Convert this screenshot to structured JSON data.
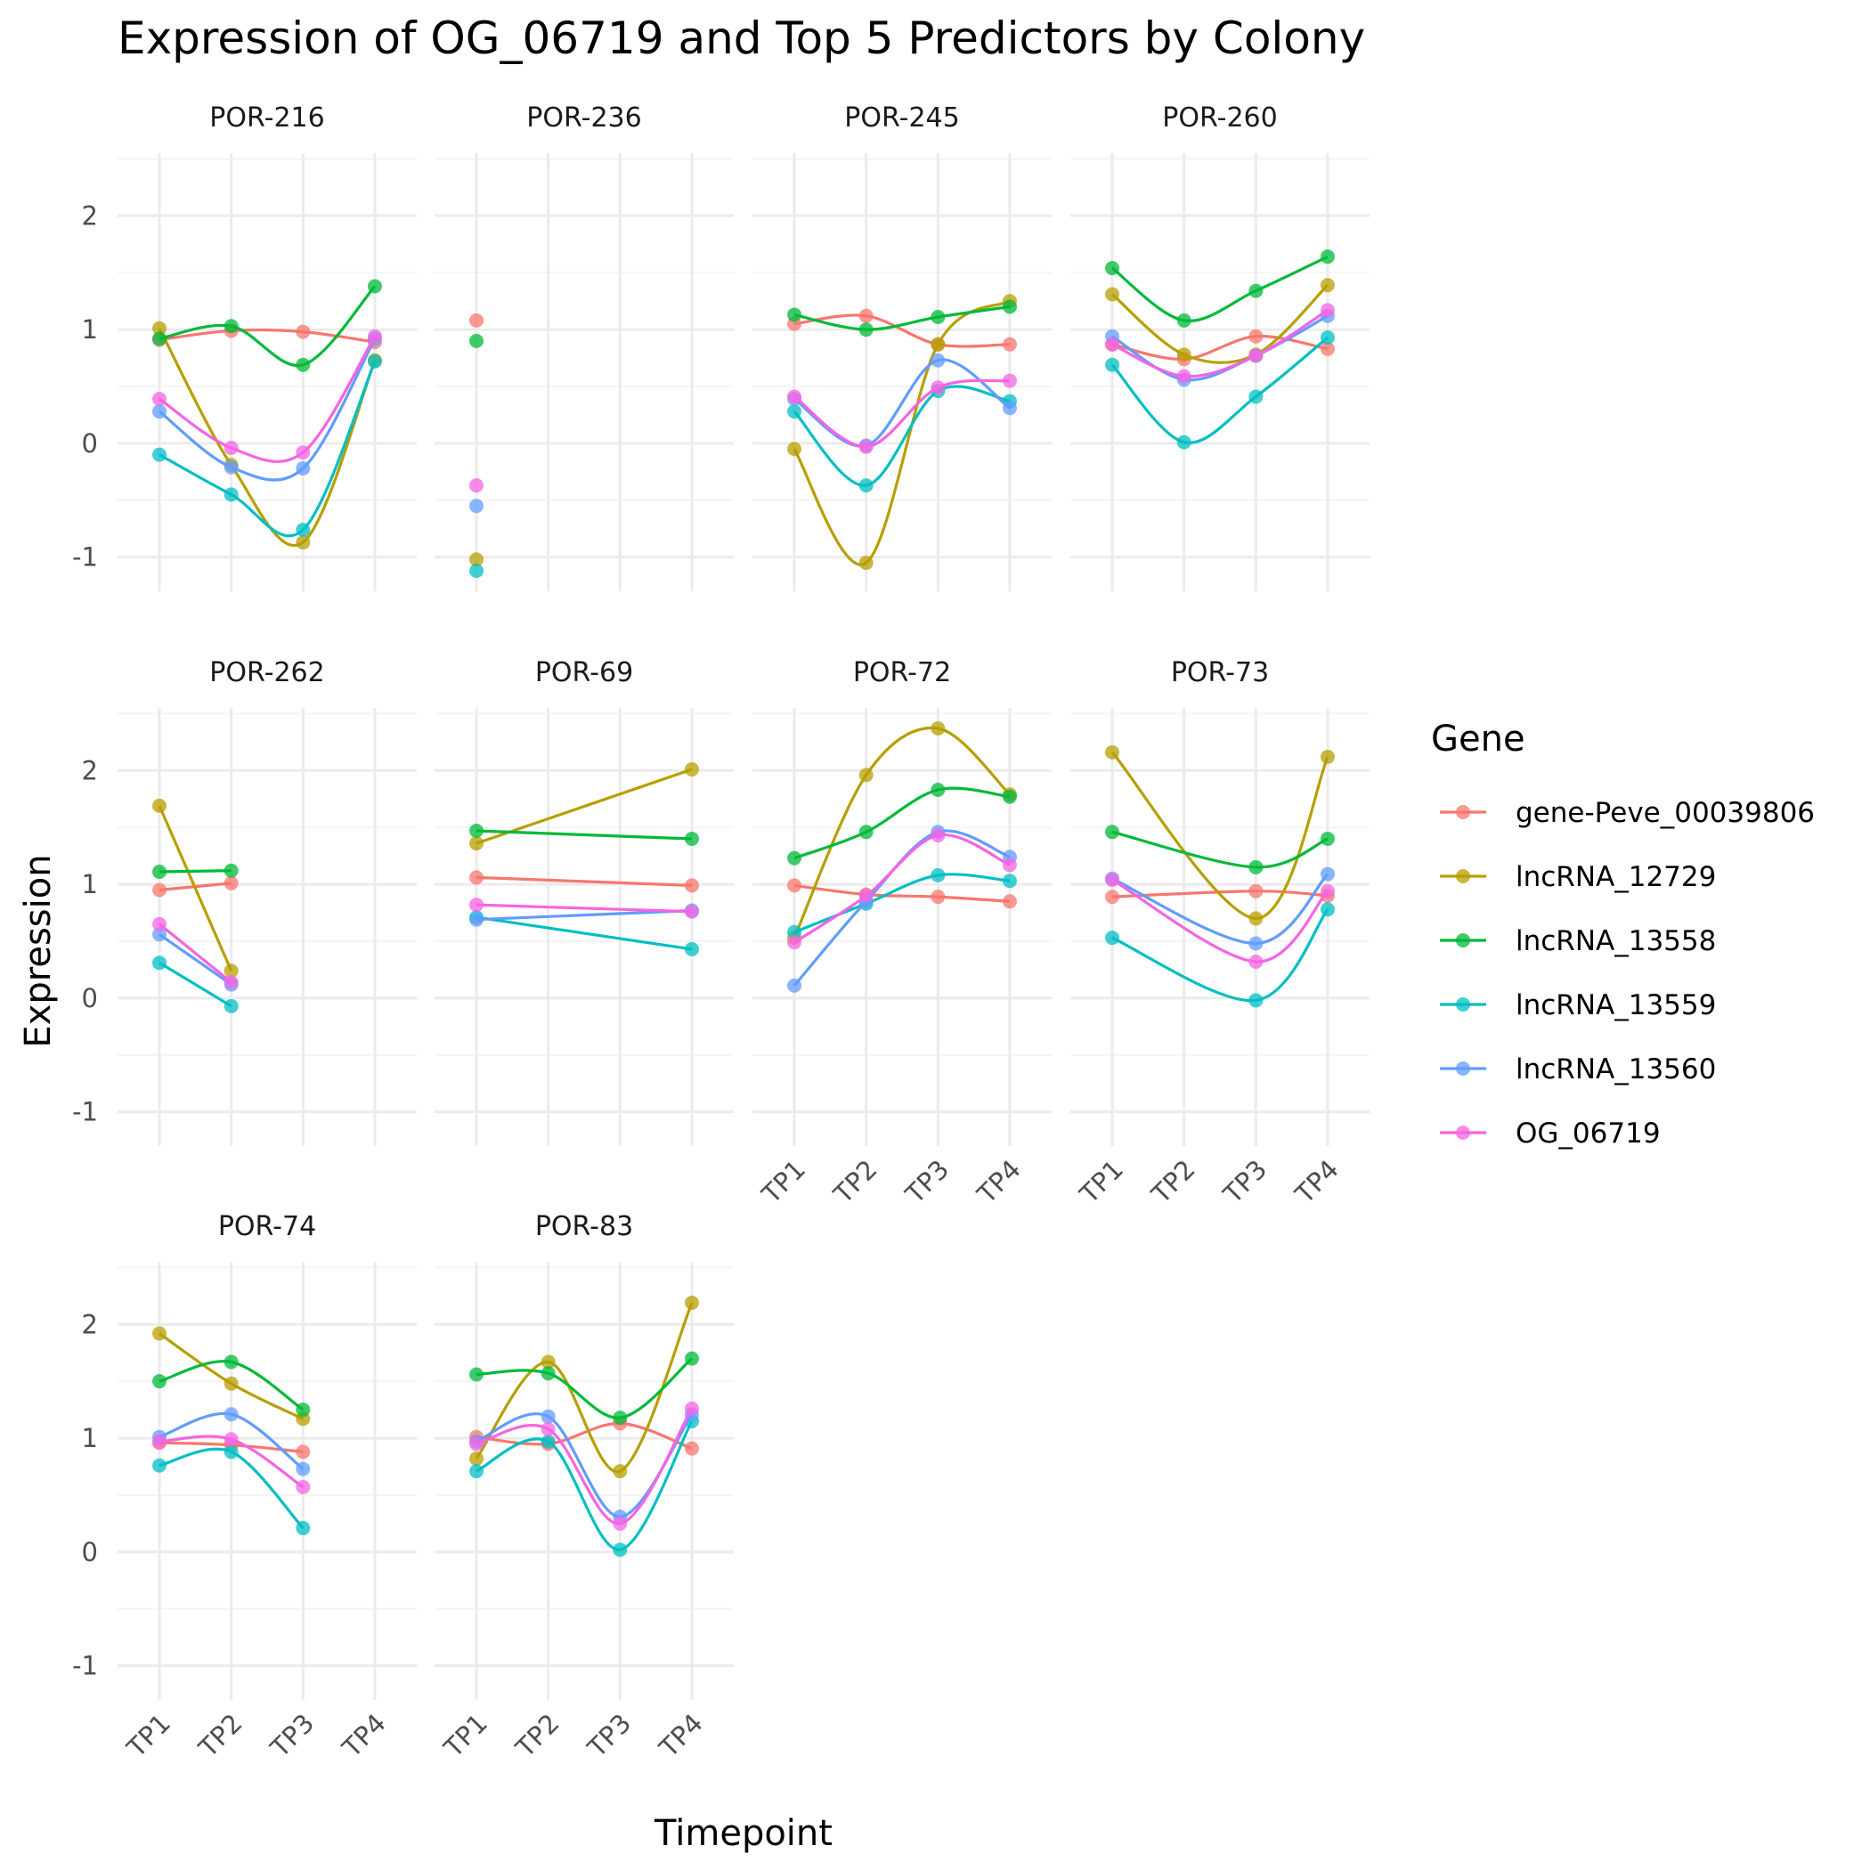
{
  "chart_data": {
    "type": "line",
    "title": "Expression of OG_06719 and Top 5 Predictors by Colony",
    "xlabel": "Timepoint",
    "ylabel": "Expression",
    "x": [
      "TP1",
      "TP2",
      "TP3",
      "TP4"
    ],
    "ylim": [
      -1.3,
      2.55
    ],
    "yticks": [
      -1,
      0,
      1,
      2
    ],
    "grid": true,
    "legend": {
      "title": "Gene",
      "placement": "right"
    },
    "series": [
      {
        "name": "gene-Peve_00039806",
        "color": "#F8766D"
      },
      {
        "name": "lncRNA_12729",
        "color": "#B79F00"
      },
      {
        "name": "lncRNA_13558",
        "color": "#00BA38"
      },
      {
        "name": "lncRNA_13559",
        "color": "#00BFC4"
      },
      {
        "name": "lncRNA_13560",
        "color": "#619CFF"
      },
      {
        "name": "OG_06719",
        "color": "#F564E3"
      }
    ],
    "panels": [
      {
        "label": "POR-216",
        "values": {
          "gene-Peve_00039806": [
            0.91,
            0.99,
            0.98,
            0.89
          ],
          "lncRNA_12729": [
            1.01,
            -0.19,
            -0.87,
            0.73
          ],
          "lncRNA_13558": [
            0.92,
            1.03,
            0.69,
            1.38
          ],
          "lncRNA_13559": [
            -0.1,
            -0.45,
            -0.76,
            0.72
          ],
          "lncRNA_13560": [
            0.28,
            -0.21,
            -0.22,
            0.92
          ],
          "OG_06719": [
            0.39,
            -0.04,
            -0.08,
            0.94
          ]
        }
      },
      {
        "label": "POR-236",
        "values": {
          "gene-Peve_00039806": [
            1.08,
            null,
            null,
            null
          ],
          "lncRNA_12729": [
            -1.02,
            null,
            null,
            null
          ],
          "lncRNA_13558": [
            0.9,
            null,
            null,
            null
          ],
          "lncRNA_13559": [
            -1.12,
            null,
            null,
            null
          ],
          "lncRNA_13560": [
            -0.55,
            null,
            null,
            null
          ],
          "OG_06719": [
            -0.37,
            null,
            null,
            null
          ]
        }
      },
      {
        "label": "POR-245",
        "values": {
          "gene-Peve_00039806": [
            1.05,
            1.12,
            0.87,
            0.87
          ],
          "lncRNA_12729": [
            -0.05,
            -1.05,
            0.87,
            1.25
          ],
          "lncRNA_13558": [
            1.13,
            1.0,
            1.11,
            1.2
          ],
          "lncRNA_13559": [
            0.28,
            -0.37,
            0.46,
            0.37
          ],
          "lncRNA_13560": [
            0.39,
            -0.02,
            0.73,
            0.31
          ],
          "OG_06719": [
            0.41,
            -0.03,
            0.49,
            0.55
          ]
        }
      },
      {
        "label": "POR-260",
        "values": {
          "gene-Peve_00039806": [
            0.87,
            0.74,
            0.94,
            0.83
          ],
          "lncRNA_12729": [
            1.31,
            0.78,
            0.78,
            1.39
          ],
          "lncRNA_13558": [
            1.54,
            1.08,
            1.34,
            1.64
          ],
          "lncRNA_13559": [
            0.69,
            0.01,
            0.41,
            0.93
          ],
          "lncRNA_13560": [
            0.94,
            0.56,
            0.77,
            1.12
          ],
          "OG_06719": [
            0.87,
            0.59,
            0.77,
            1.17
          ]
        }
      },
      {
        "label": "POR-262",
        "values": {
          "gene-Peve_00039806": [
            0.95,
            1.01,
            null,
            null
          ],
          "lncRNA_12729": [
            1.69,
            0.24,
            null,
            null
          ],
          "lncRNA_13558": [
            1.11,
            1.12,
            null,
            null
          ],
          "lncRNA_13559": [
            0.31,
            -0.07,
            null,
            null
          ],
          "lncRNA_13560": [
            0.56,
            0.12,
            null,
            null
          ],
          "OG_06719": [
            0.65,
            0.14,
            null,
            null
          ]
        }
      },
      {
        "label": "POR-69",
        "values": {
          "gene-Peve_00039806": [
            1.06,
            null,
            null,
            0.99
          ],
          "lncRNA_12729": [
            1.36,
            null,
            null,
            2.01
          ],
          "lncRNA_13558": [
            1.47,
            null,
            null,
            1.4
          ],
          "lncRNA_13559": [
            0.71,
            null,
            null,
            0.43
          ],
          "lncRNA_13560": [
            0.69,
            null,
            null,
            0.77
          ],
          "OG_06719": [
            0.82,
            null,
            null,
            0.76
          ]
        }
      },
      {
        "label": "POR-72",
        "values": {
          "gene-Peve_00039806": [
            0.99,
            0.91,
            0.89,
            0.85
          ],
          "lncRNA_12729": [
            0.53,
            1.96,
            2.37,
            1.79
          ],
          "lncRNA_13558": [
            1.23,
            1.46,
            1.83,
            1.77
          ],
          "lncRNA_13559": [
            0.58,
            0.83,
            1.08,
            1.03
          ],
          "lncRNA_13560": [
            0.11,
            0.85,
            1.46,
            1.24
          ],
          "OG_06719": [
            0.49,
            0.9,
            1.43,
            1.17
          ]
        }
      },
      {
        "label": "POR-73",
        "values": {
          "gene-Peve_00039806": [
            0.89,
            null,
            0.94,
            0.9
          ],
          "lncRNA_12729": [
            2.16,
            null,
            0.7,
            2.12
          ],
          "lncRNA_13558": [
            1.46,
            null,
            1.15,
            1.4
          ],
          "lncRNA_13559": [
            0.53,
            null,
            -0.02,
            0.78
          ],
          "lncRNA_13560": [
            1.05,
            null,
            0.48,
            1.09
          ],
          "OG_06719": [
            1.04,
            null,
            0.32,
            0.94
          ]
        }
      },
      {
        "label": "POR-74",
        "values": {
          "gene-Peve_00039806": [
            0.96,
            0.94,
            0.88,
            null
          ],
          "lncRNA_12729": [
            1.92,
            1.48,
            1.17,
            null
          ],
          "lncRNA_13558": [
            1.5,
            1.67,
            1.25,
            null
          ],
          "lncRNA_13559": [
            0.76,
            0.88,
            0.21,
            null
          ],
          "lncRNA_13560": [
            1.01,
            1.21,
            0.73,
            null
          ],
          "OG_06719": [
            0.97,
            0.99,
            0.57,
            null
          ]
        }
      },
      {
        "label": "POR-83",
        "values": {
          "gene-Peve_00039806": [
            1.01,
            0.95,
            1.13,
            0.91
          ],
          "lncRNA_12729": [
            0.82,
            1.67,
            0.71,
            2.19
          ],
          "lncRNA_13558": [
            1.56,
            1.57,
            1.18,
            1.7
          ],
          "lncRNA_13559": [
            0.71,
            0.97,
            0.02,
            1.15
          ],
          "lncRNA_13560": [
            0.97,
            1.19,
            0.31,
            1.21
          ],
          "OG_06719": [
            0.95,
            1.08,
            0.25,
            1.26
          ]
        }
      }
    ]
  }
}
